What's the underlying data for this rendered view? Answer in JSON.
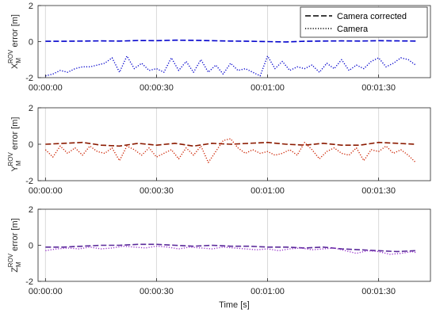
{
  "chart_data": [
    {
      "type": "line",
      "ylabel": "X_M^ROV error [m]",
      "ylabel_parts": {
        "base": "X",
        "sub": "M",
        "sup": "ROV",
        "rest": " error [m]"
      },
      "ylim": [
        -2,
        2
      ],
      "yticks": [
        -2,
        0,
        2
      ],
      "xlim": [
        -2,
        104
      ],
      "xticks": [
        0,
        30,
        60,
        90
      ],
      "xticklabels": [
        "00:00:00",
        "00:00:30",
        "00:01:00",
        "00:01:30"
      ],
      "grid": "vertical",
      "legend_position": "top-right",
      "series": [
        {
          "name": "Camera corrected",
          "style": "dashed",
          "color": "#0000cc",
          "x": [
            0,
            5,
            10,
            15,
            20,
            25,
            30,
            35,
            40,
            45,
            50,
            55,
            60,
            65,
            70,
            75,
            80,
            85,
            90,
            95,
            100
          ],
          "y": [
            0.02,
            0.02,
            0.03,
            0.04,
            0.03,
            0.06,
            0.05,
            0.08,
            0.07,
            0.05,
            0.03,
            0.02,
            0.0,
            -0.02,
            0.02,
            0.03,
            0.04,
            0.03,
            0.05,
            0.04,
            0.03
          ]
        },
        {
          "name": "Camera",
          "style": "dotted",
          "color": "#0000cc",
          "x": [
            0,
            2,
            4,
            6,
            8,
            10,
            12,
            14,
            16,
            18,
            20,
            22,
            24,
            26,
            28,
            30,
            32,
            34,
            36,
            38,
            40,
            42,
            44,
            46,
            48,
            50,
            52,
            54,
            56,
            58,
            60,
            62,
            64,
            66,
            68,
            70,
            72,
            74,
            76,
            78,
            80,
            82,
            84,
            86,
            88,
            90,
            92,
            94,
            96,
            98,
            100
          ],
          "y": [
            -1.9,
            -1.8,
            -1.6,
            -1.7,
            -1.5,
            -1.4,
            -1.4,
            -1.3,
            -1.2,
            -0.9,
            -1.7,
            -0.8,
            -1.5,
            -1.2,
            -1.6,
            -1.5,
            -1.7,
            -0.9,
            -1.6,
            -1.1,
            -1.7,
            -1.0,
            -1.7,
            -1.3,
            -1.8,
            -1.2,
            -1.6,
            -1.5,
            -1.7,
            -1.9,
            -0.8,
            -1.5,
            -1.1,
            -1.6,
            -1.4,
            -1.5,
            -1.3,
            -1.7,
            -1.2,
            -1.5,
            -1.0,
            -1.6,
            -1.3,
            -1.5,
            -1.1,
            -0.9,
            -1.4,
            -1.2,
            -0.9,
            -1.0,
            -1.3
          ]
        }
      ]
    },
    {
      "type": "line",
      "ylabel": "Y_M^ROV error [m]",
      "ylabel_parts": {
        "base": "Y",
        "sub": "M",
        "sup": "ROV",
        "rest": " error [m]"
      },
      "ylim": [
        -2,
        2
      ],
      "yticks": [
        -2,
        0,
        2
      ],
      "xlim": [
        -2,
        104
      ],
      "xticks": [
        0,
        30,
        60,
        90
      ],
      "xticklabels": [
        "00:00:00",
        "00:00:30",
        "00:01:00",
        "00:01:30"
      ],
      "grid": "vertical",
      "series": [
        {
          "name": "Camera corrected",
          "style": "dashed",
          "color": "#8b1a00",
          "x": [
            0,
            5,
            10,
            15,
            20,
            25,
            30,
            35,
            40,
            45,
            50,
            55,
            60,
            65,
            70,
            75,
            80,
            85,
            90,
            95,
            100
          ],
          "y": [
            0.0,
            0.05,
            0.1,
            -0.05,
            -0.1,
            0.05,
            -0.05,
            0.05,
            -0.1,
            0.05,
            0.0,
            0.05,
            0.1,
            0.0,
            -0.05,
            0.05,
            -0.05,
            -0.05,
            0.1,
            0.05,
            0.0
          ]
        },
        {
          "name": "Camera",
          "style": "dotted",
          "color": "#cc2200",
          "x": [
            0,
            2,
            4,
            6,
            8,
            10,
            12,
            14,
            16,
            18,
            20,
            22,
            24,
            26,
            28,
            30,
            32,
            34,
            36,
            38,
            40,
            42,
            44,
            46,
            48,
            50,
            52,
            54,
            56,
            58,
            60,
            62,
            64,
            66,
            68,
            70,
            72,
            74,
            76,
            78,
            80,
            82,
            84,
            86,
            88,
            90,
            92,
            94,
            96,
            98,
            100
          ],
          "y": [
            -0.3,
            -0.7,
            -0.1,
            -0.5,
            -0.2,
            -0.6,
            -0.1,
            -0.4,
            -0.5,
            -0.2,
            -0.9,
            -0.1,
            -0.3,
            -0.6,
            -0.2,
            -0.7,
            -0.5,
            -0.3,
            -0.8,
            -0.2,
            -0.6,
            -0.1,
            -1.0,
            -0.4,
            0.2,
            0.3,
            -0.2,
            -0.5,
            -0.3,
            -0.5,
            -0.4,
            -0.6,
            -0.5,
            -0.3,
            -0.6,
            0.1,
            -0.3,
            -0.8,
            -0.4,
            -0.2,
            -0.5,
            -0.6,
            -0.2,
            -0.9,
            -0.3,
            -0.4,
            -0.1,
            -0.5,
            -0.3,
            -0.6,
            -1.0
          ]
        }
      ]
    },
    {
      "type": "line",
      "ylabel": "Z_M^ROV error [m]",
      "ylabel_parts": {
        "base": "Z",
        "sub": "M",
        "sup": "ROV",
        "rest": " error [m]"
      },
      "ylim": [
        -2,
        2
      ],
      "yticks": [
        -2,
        0,
        2
      ],
      "xlim": [
        -2,
        104
      ],
      "xticks": [
        0,
        30,
        60,
        90
      ],
      "xticklabels": [
        "00:00:00",
        "00:00:30",
        "00:01:00",
        "00:01:30"
      ],
      "xlabel": "Time [s]",
      "grid": "vertical",
      "series": [
        {
          "name": "Camera corrected",
          "style": "dashed",
          "color": "#5a2a9a",
          "x": [
            0,
            5,
            10,
            15,
            20,
            25,
            30,
            35,
            40,
            45,
            50,
            55,
            60,
            65,
            70,
            75,
            80,
            85,
            90,
            95,
            100
          ],
          "y": [
            -0.1,
            -0.1,
            -0.05,
            0.0,
            0.0,
            0.05,
            0.05,
            0.0,
            -0.05,
            0.0,
            -0.05,
            -0.05,
            -0.1,
            -0.1,
            -0.15,
            -0.1,
            -0.2,
            -0.25,
            -0.3,
            -0.35,
            -0.3
          ]
        },
        {
          "name": "Camera",
          "style": "dotted",
          "color": "#9933cc",
          "x": [
            0,
            3,
            6,
            9,
            12,
            15,
            18,
            21,
            24,
            27,
            30,
            33,
            36,
            39,
            42,
            45,
            48,
            51,
            54,
            57,
            60,
            63,
            66,
            69,
            72,
            75,
            78,
            81,
            84,
            87,
            90,
            93,
            96,
            99,
            100
          ],
          "y": [
            -0.3,
            -0.2,
            -0.15,
            -0.2,
            -0.1,
            -0.2,
            -0.15,
            -0.05,
            -0.1,
            -0.15,
            -0.05,
            -0.1,
            -0.2,
            -0.1,
            -0.15,
            -0.2,
            -0.1,
            -0.15,
            -0.2,
            -0.25,
            -0.2,
            -0.3,
            -0.2,
            -0.15,
            -0.25,
            -0.2,
            -0.15,
            -0.3,
            -0.45,
            -0.3,
            -0.35,
            -0.5,
            -0.45,
            -0.35,
            -0.4
          ]
        }
      ]
    }
  ]
}
